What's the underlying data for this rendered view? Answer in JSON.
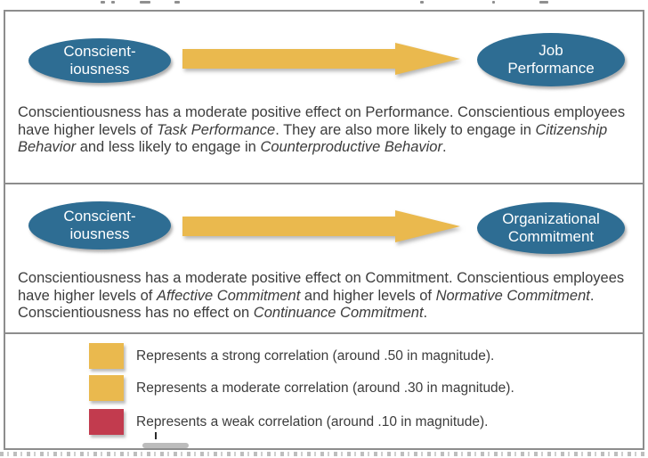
{
  "figure": {
    "panels": [
      {
        "id": "performance",
        "left_node": "Conscient-\niousness",
        "right_node": "Job\nPerformance",
        "description": [
          {
            "t": "Conscientiousness has a moderate positive effect on Performance. Conscientious employees have higher levels of "
          },
          {
            "t": "Task Performance",
            "i": true
          },
          {
            "t": ". They are also more likely to engage in "
          },
          {
            "t": "Citizenship Behavior",
            "i": true
          },
          {
            "t": " and less likely to engage in "
          },
          {
            "t": "Counterproductive Behavior",
            "i": true
          },
          {
            "t": "."
          }
        ]
      },
      {
        "id": "commitment",
        "left_node": "Conscient-\niousness",
        "right_node": "Organizational\nCommitment",
        "description": [
          {
            "t": "Conscientiousness has a moderate positive effect on Commitment. Conscientious employees have higher levels of "
          },
          {
            "t": "Affective Commitment",
            "i": true
          },
          {
            "t": " and higher levels of "
          },
          {
            "t": "Normative Commitment",
            "i": true
          },
          {
            "t": ". Conscientiousness has no effect on "
          },
          {
            "t": "Continuance Commitment",
            "i": true
          },
          {
            "t": "."
          }
        ]
      }
    ],
    "legend": [
      {
        "name": "strong",
        "color": "#eab94e",
        "label": "Represents a strong correlation (around .50 in magnitude)."
      },
      {
        "name": "moderate",
        "color": "#eab94e",
        "label": "Represents a moderate correlation (around .30 in magnitude)."
      },
      {
        "name": "weak",
        "color": "#c23b4e",
        "label": "Represents a weak correlation (around .10 in magnitude)."
      }
    ],
    "colors": {
      "node_fill": "#2e6d93",
      "node_text": "#ffffff",
      "arrow": "#eab94e",
      "panel_border": "#8d8d8d",
      "body_text": "#3c3c3c"
    }
  }
}
